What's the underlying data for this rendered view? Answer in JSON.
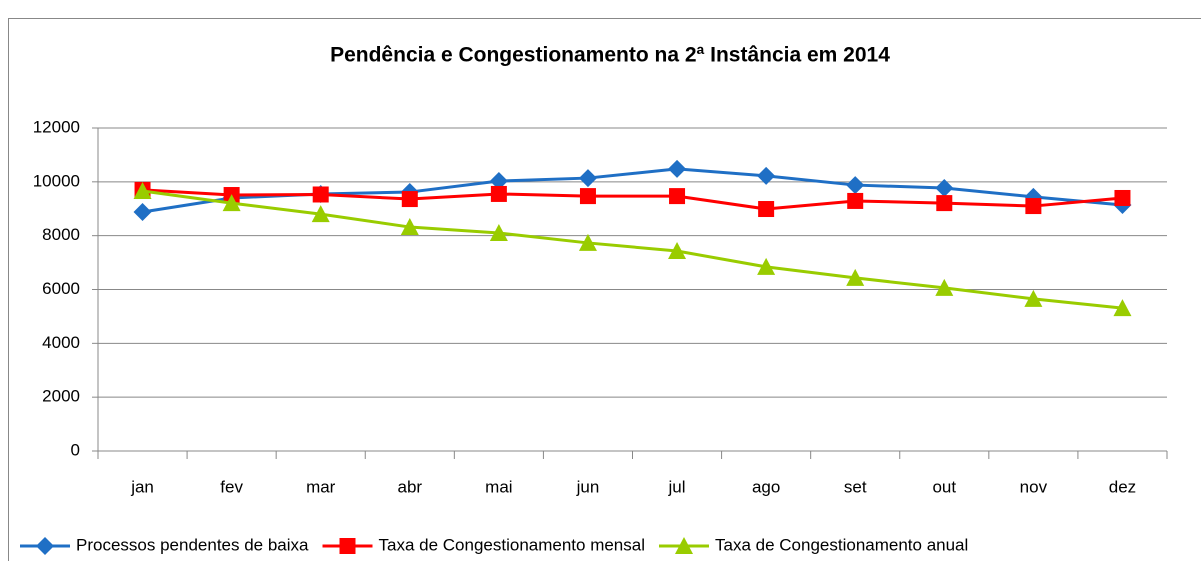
{
  "chart_data": {
    "type": "line",
    "title": "Pendência e Congestionamento na 2ª Instância em 2014",
    "categories": [
      "jan",
      "fev",
      "mar",
      "abr",
      "mai",
      "jun",
      "jul",
      "ago",
      "set",
      "out",
      "nov",
      "dez"
    ],
    "series": [
      {
        "name": "Processos pendentes de baixa",
        "color": "#1f6fc5",
        "marker": "diamond",
        "values": [
          8880,
          9400,
          9550,
          9620,
          10030,
          10140,
          10480,
          10220,
          9880,
          9770,
          9440,
          9140
        ]
      },
      {
        "name": "Taxa de Congestionamento mensal",
        "color": "#ff0000",
        "marker": "square",
        "values": [
          9700,
          9510,
          9530,
          9360,
          9550,
          9470,
          9470,
          8990,
          9290,
          9210,
          9100,
          9400
        ]
      },
      {
        "name": "Taxa de Congestionamento anual",
        "color": "#99cc00",
        "marker": "triangle",
        "values": [
          9660,
          9210,
          8800,
          8320,
          8100,
          7730,
          7430,
          6840,
          6430,
          6060,
          5650,
          5310
        ]
      }
    ],
    "ylim": [
      0,
      12000
    ],
    "yticks": [
      0,
      2000,
      4000,
      6000,
      8000,
      10000,
      12000
    ],
    "grid": true,
    "legend": "bottom"
  }
}
